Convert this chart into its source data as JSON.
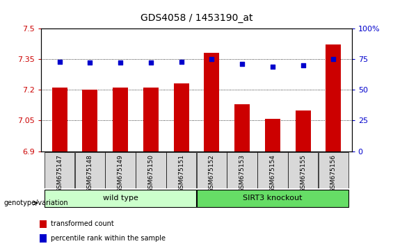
{
  "title": "GDS4058 / 1453190_at",
  "samples": [
    "GSM675147",
    "GSM675148",
    "GSM675149",
    "GSM675150",
    "GSM675151",
    "GSM675152",
    "GSM675153",
    "GSM675154",
    "GSM675155",
    "GSM675156"
  ],
  "transformed_count": [
    7.21,
    7.2,
    7.21,
    7.21,
    7.23,
    7.38,
    7.13,
    7.06,
    7.1,
    7.42
  ],
  "percentile_rank": [
    73,
    72,
    72,
    72,
    73,
    75,
    71,
    69,
    70,
    75
  ],
  "ylim": [
    6.9,
    7.5
  ],
  "yticks": [
    6.9,
    7.05,
    7.2,
    7.35,
    7.5
  ],
  "ytick_labels": [
    "6.9",
    "7.05",
    "7.2",
    "7.35",
    "7.5"
  ],
  "right_ylim": [
    0,
    100
  ],
  "right_yticks": [
    0,
    25,
    50,
    75,
    100
  ],
  "right_ytick_labels": [
    "0",
    "25",
    "50",
    "75",
    "100%"
  ],
  "bar_color": "#cc0000",
  "dot_color": "#0000cc",
  "left_tick_color": "#cc0000",
  "right_tick_color": "#0000cc",
  "grid_color": "black",
  "groups": [
    {
      "label": "wild type",
      "start": 0,
      "end": 5,
      "color": "#ccffcc"
    },
    {
      "label": "SIRT3 knockout",
      "start": 5,
      "end": 10,
      "color": "#66dd66"
    }
  ],
  "legend_items": [
    {
      "color": "#cc0000",
      "label": "transformed count"
    },
    {
      "color": "#0000cc",
      "label": "percentile rank within the sample"
    }
  ],
  "genotype_label": "genotype/variation",
  "background_color": "#d8d8d8",
  "plot_bg_color": "#ffffff"
}
